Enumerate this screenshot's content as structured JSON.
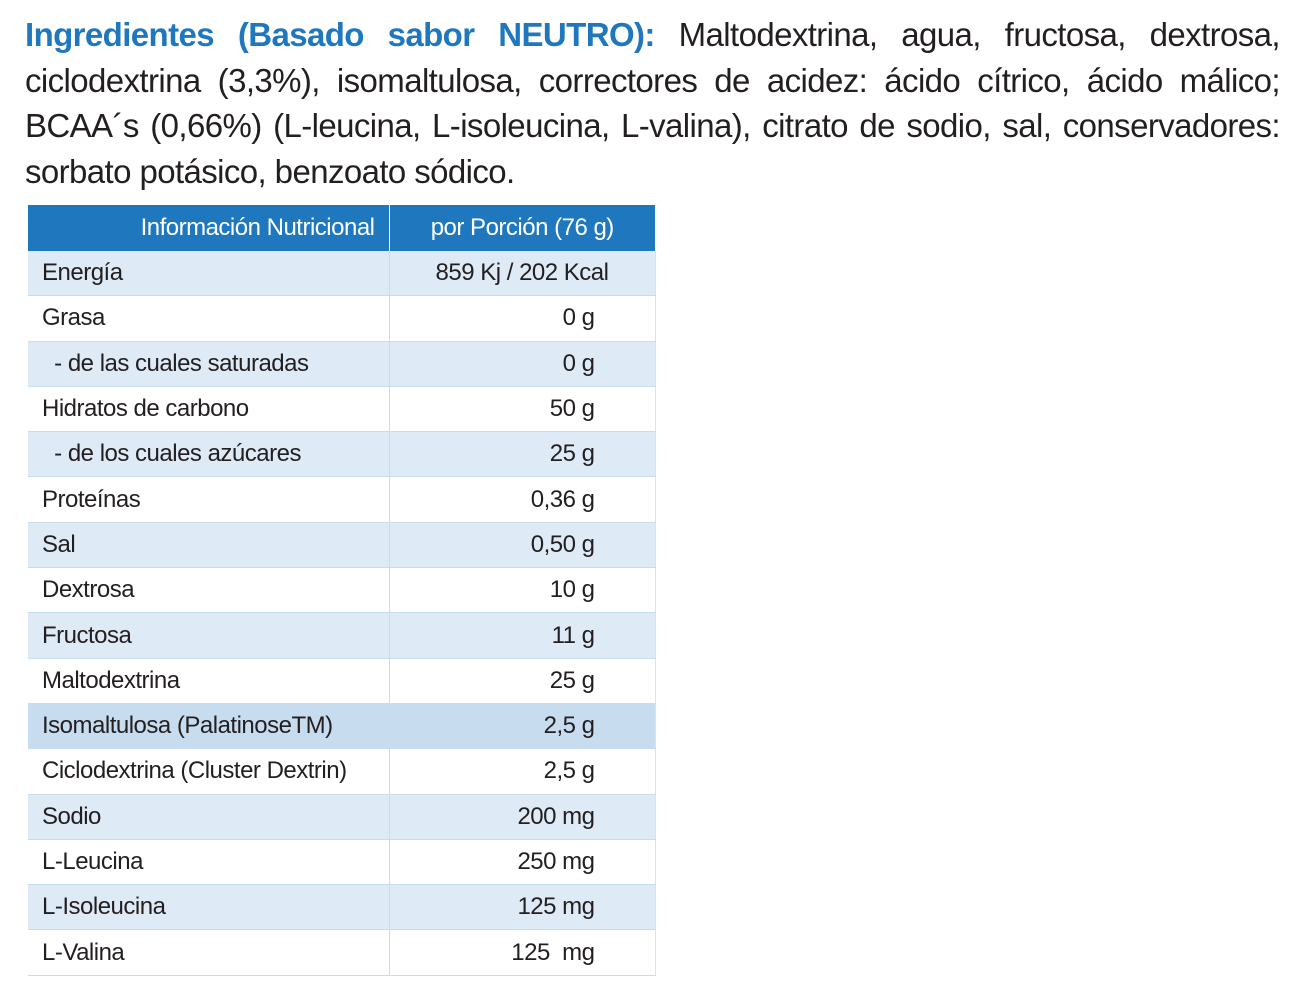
{
  "ingredients": {
    "label": "Ingredientes (Basado sabor NEUTRO):",
    "text": "Maltodextrina, agua, fructosa, dextrosa, ciclodextrina (3,3%), isomaltulosa, correctores de acidez: ácido cítrico, ácido málico; BCAA´s (0,66%) (L-leucina, L-isoleucina, L-valina), citrato de sodio, sal,  conservadores: sorbato potásico, benzoato sódico."
  },
  "colors": {
    "accent": "#1f78be",
    "row_shade": "#deeaf6",
    "row_highlight": "#c7dcef"
  },
  "table": {
    "header": {
      "col1": "Información Nutricional",
      "col2": "por Porción (76 g)"
    },
    "rows": [
      {
        "name": "Energía",
        "value": "859 Kj / 202 Kcal"
      },
      {
        "name": "Grasa",
        "value": "0 g"
      },
      {
        "name": " - de las cuales saturadas",
        "value": "0 g"
      },
      {
        "name": "Hidratos de carbono",
        "value": "50 g"
      },
      {
        "name": " - de los cuales azúcares",
        "value": "25 g"
      },
      {
        "name": "Proteínas",
        "value": "0,36 g"
      },
      {
        "name": "Sal",
        "value": "0,50 g"
      },
      {
        "name": "Dextrosa",
        "value": "10 g"
      },
      {
        "name": "Fructosa",
        "value": "11 g"
      },
      {
        "name": "Maltodextrina",
        "value": "25 g"
      },
      {
        "name": "Isomaltulosa (PalatinoseTM)",
        "value": "2,5 g"
      },
      {
        "name": "Ciclodextrina (Cluster Dextrin)",
        "value": "2,5 g"
      },
      {
        "name": "Sodio",
        "value": "200 mg"
      },
      {
        "name": "L-Leucina",
        "value": "250 mg"
      },
      {
        "name": "L-Isoleucina",
        "value": "125 mg"
      },
      {
        "name": "L-Valina",
        "value": "125  mg"
      }
    ]
  }
}
